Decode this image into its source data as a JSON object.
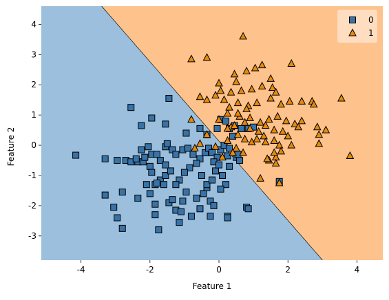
{
  "chart_data": {
    "type": "scatter",
    "title": "",
    "xlabel": "Feature 1",
    "ylabel": "Feature 2",
    "xlim": [
      -5.15,
      4.75
    ],
    "ylim": [
      -3.8,
      4.6
    ],
    "xticks": [
      -4,
      -2,
      0,
      2,
      4
    ],
    "yticks": [
      -3,
      -2,
      -1,
      0,
      1,
      2,
      3,
      4
    ],
    "grid": false,
    "legend_position": "top-right",
    "decision_boundary": [
      [
        -3.4,
        4.6
      ],
      [
        3.0,
        -3.8
      ]
    ],
    "regions": [
      {
        "label": "0",
        "color": "#9bbfdc"
      },
      {
        "label": "1",
        "color": "#fec28c"
      }
    ],
    "series": [
      {
        "name": "0",
        "marker": "square",
        "color": "#3773a8",
        "points": [
          [
            -4.15,
            -0.33
          ],
          [
            -3.3,
            -0.45
          ],
          [
            -2.95,
            -0.5
          ],
          [
            -2.7,
            -0.5
          ],
          [
            -2.55,
            -0.55
          ],
          [
            -2.35,
            -0.55
          ],
          [
            -2.2,
            -0.55
          ],
          [
            -2.25,
            -0.15
          ],
          [
            -2.05,
            -0.05
          ],
          [
            -2.15,
            -0.4
          ],
          [
            -2.0,
            -0.7
          ],
          [
            -1.95,
            -0.3
          ],
          [
            -1.8,
            -0.3
          ],
          [
            -1.7,
            -0.5
          ],
          [
            -1.55,
            -0.05
          ],
          [
            -1.5,
            0.05
          ],
          [
            -1.35,
            -0.15
          ],
          [
            -1.25,
            -0.3
          ],
          [
            -1.05,
            -0.15
          ],
          [
            -0.9,
            -0.1
          ],
          [
            -0.75,
            -0.3
          ],
          [
            -0.55,
            -0.45
          ],
          [
            -0.4,
            -0.25
          ],
          [
            -0.3,
            -0.1
          ],
          [
            -0.2,
            -0.25
          ],
          [
            -0.05,
            -0.4
          ],
          [
            0.05,
            -0.15
          ],
          [
            0.15,
            0.0
          ],
          [
            0.3,
            -0.1
          ],
          [
            0.25,
            -0.35
          ],
          [
            -3.3,
            -1.65
          ],
          [
            -3.05,
            -2.05
          ],
          [
            -2.95,
            -2.4
          ],
          [
            -2.8,
            -2.75
          ],
          [
            -2.8,
            -1.55
          ],
          [
            -2.35,
            -1.75
          ],
          [
            -2.1,
            -1.3
          ],
          [
            -2.0,
            -1.6
          ],
          [
            -1.85,
            -1.95
          ],
          [
            -1.85,
            -2.3
          ],
          [
            -1.75,
            -2.8
          ],
          [
            -1.85,
            -1.3
          ],
          [
            -1.7,
            -1.15
          ],
          [
            -1.55,
            -1.0
          ],
          [
            -1.45,
            -1.9
          ],
          [
            -1.35,
            -1.8
          ],
          [
            -1.25,
            -2.15
          ],
          [
            -1.15,
            -2.55
          ],
          [
            -1.1,
            -2.2
          ],
          [
            -1.05,
            -1.85
          ],
          [
            -0.95,
            -1.55
          ],
          [
            -0.8,
            -2.35
          ],
          [
            -0.65,
            -1.75
          ],
          [
            -0.55,
            -2.1
          ],
          [
            -0.45,
            -1.6
          ],
          [
            -0.35,
            -1.4
          ],
          [
            -0.25,
            -1.85
          ],
          [
            -0.5,
            -1.0
          ],
          [
            -0.35,
            -1.3
          ],
          [
            -0.65,
            -0.6
          ],
          [
            -0.85,
            -0.75
          ],
          [
            -1.0,
            -0.9
          ],
          [
            -1.15,
            -1.15
          ],
          [
            -1.25,
            -1.3
          ],
          [
            -1.4,
            -0.85
          ],
          [
            -1.55,
            -0.65
          ],
          [
            -1.6,
            -1.3
          ],
          [
            -1.8,
            -1.25
          ],
          [
            -1.95,
            -0.9
          ],
          [
            -2.4,
            -0.45
          ],
          [
            -0.15,
            -0.55
          ],
          [
            -0.1,
            -0.85
          ],
          [
            0.0,
            -0.65
          ],
          [
            0.1,
            -1.0
          ],
          [
            0.2,
            -1.3
          ],
          [
            0.3,
            -0.7
          ],
          [
            0.5,
            -0.4
          ],
          [
            0.55,
            -0.3
          ],
          [
            -0.15,
            -2.0
          ],
          [
            -0.25,
            -2.35
          ],
          [
            0.25,
            -2.35
          ],
          [
            0.25,
            -2.4
          ],
          [
            0.8,
            -2.05
          ],
          [
            0.85,
            -2.1
          ],
          [
            -1.45,
            1.55
          ],
          [
            -1.55,
            0.7
          ],
          [
            -1.95,
            0.9
          ],
          [
            -2.25,
            0.65
          ],
          [
            -2.55,
            1.25
          ],
          [
            -0.95,
            0.4
          ],
          [
            -0.55,
            0.55
          ],
          [
            0.05,
            0.85
          ],
          [
            0.2,
            0.8
          ],
          [
            0.3,
            0.55
          ],
          [
            0.45,
            0.65
          ],
          [
            0.65,
            0.55
          ],
          [
            0.85,
            0.55
          ],
          [
            1.0,
            0.6
          ],
          [
            1.75,
            -1.2
          ],
          [
            -0.35,
            0.35
          ],
          [
            -0.05,
            0.55
          ],
          [
            0.4,
            0.3
          ],
          [
            0.6,
            -0.5
          ],
          [
            -0.2,
            -1.15
          ],
          [
            0.05,
            -1.45
          ]
        ]
      },
      {
        "name": "1",
        "marker": "triangle",
        "color": "#e58a0c",
        "points": [
          [
            0.7,
            3.6
          ],
          [
            -0.35,
            2.9
          ],
          [
            -0.8,
            2.85
          ],
          [
            0.45,
            2.35
          ],
          [
            0.8,
            2.45
          ],
          [
            1.05,
            2.55
          ],
          [
            1.25,
            2.65
          ],
          [
            1.5,
            2.2
          ],
          [
            2.1,
            2.7
          ],
          [
            0.5,
            2.1
          ],
          [
            0.0,
            2.05
          ],
          [
            0.05,
            1.8
          ],
          [
            0.35,
            1.75
          ],
          [
            0.65,
            1.8
          ],
          [
            0.95,
            1.85
          ],
          [
            1.25,
            1.95
          ],
          [
            1.55,
            1.9
          ],
          [
            1.65,
            1.75
          ],
          [
            -0.35,
            1.5
          ],
          [
            -0.1,
            1.65
          ],
          [
            -0.55,
            1.6
          ],
          [
            0.15,
            1.5
          ],
          [
            0.55,
            1.4
          ],
          [
            0.85,
            1.3
          ],
          [
            1.1,
            1.4
          ],
          [
            1.5,
            1.55
          ],
          [
            1.8,
            1.35
          ],
          [
            2.05,
            1.45
          ],
          [
            2.4,
            1.45
          ],
          [
            2.7,
            1.45
          ],
          [
            2.75,
            1.35
          ],
          [
            3.55,
            1.55
          ],
          [
            0.25,
            1.05
          ],
          [
            0.6,
            0.95
          ],
          [
            0.9,
            0.9
          ],
          [
            1.2,
            0.75
          ],
          [
            1.45,
            0.85
          ],
          [
            1.7,
            0.95
          ],
          [
            1.95,
            0.8
          ],
          [
            2.2,
            0.7
          ],
          [
            2.4,
            0.8
          ],
          [
            2.85,
            0.6
          ],
          [
            3.1,
            0.5
          ],
          [
            2.9,
            0.35
          ],
          [
            1.35,
            0.65
          ],
          [
            1.6,
            0.5
          ],
          [
            1.85,
            0.45
          ],
          [
            2.0,
            0.3
          ],
          [
            2.3,
            0.6
          ],
          [
            0.35,
            0.6
          ],
          [
            0.55,
            0.35
          ],
          [
            0.75,
            0.2
          ],
          [
            0.95,
            0.1
          ],
          [
            1.1,
            0.2
          ],
          [
            1.3,
            0.3
          ],
          [
            1.6,
            0.15
          ],
          [
            1.75,
            0.0
          ],
          [
            2.1,
            0.0
          ],
          [
            2.9,
            0.05
          ],
          [
            0.5,
            -0.1
          ],
          [
            0.7,
            -0.25
          ],
          [
            1.45,
            -0.5
          ],
          [
            1.65,
            -0.4
          ],
          [
            1.65,
            -0.6
          ],
          [
            1.8,
            -0.2
          ],
          [
            3.8,
            -0.35
          ],
          [
            1.6,
            -0.25
          ],
          [
            1.2,
            -1.1
          ],
          [
            1.75,
            -1.25
          ],
          [
            -0.8,
            0.85
          ],
          [
            -0.7,
            -0.1
          ],
          [
            -0.55,
            0.05
          ],
          [
            -0.35,
            0.35
          ],
          [
            -0.1,
            -0.05
          ],
          [
            0.25,
            0.15
          ],
          [
            0.4,
            -0.25
          ],
          [
            0.1,
            -0.4
          ],
          [
            0.25,
            0.55
          ],
          [
            0.45,
            0.65
          ],
          [
            0.9,
            0.55
          ],
          [
            1.15,
            0.45
          ],
          [
            1.35,
            0.1
          ],
          [
            0.55,
            1.05
          ],
          [
            0.8,
            1.2
          ],
          [
            0.3,
            1.25
          ],
          [
            0.0,
            0.85
          ],
          [
            1.4,
            -0.45
          ],
          [
            0.75,
            0.75
          ]
        ]
      }
    ],
    "legend": [
      {
        "label": "0",
        "marker": "square",
        "color": "#3773a8"
      },
      {
        "label": "1",
        "marker": "triangle",
        "color": "#e58a0c"
      }
    ]
  }
}
